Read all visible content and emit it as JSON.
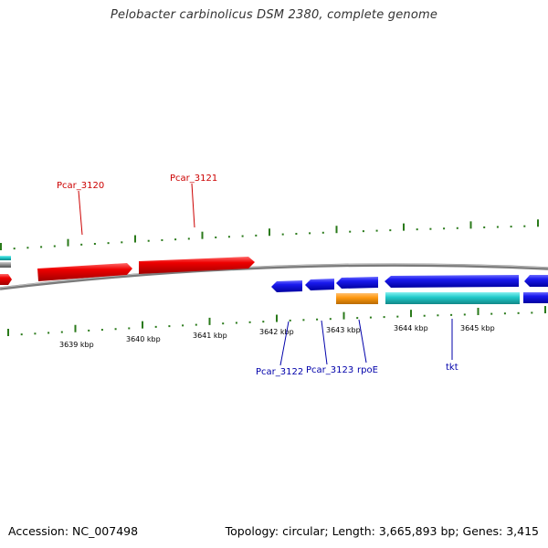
{
  "title": "Pelobacter carbinolicus DSM 2380, complete genome",
  "footer": {
    "accession": "Accession: NC_007498",
    "summary": "Topology: circular; Length: 3,665,893 bp; Genes: 3,415"
  },
  "colors": {
    "plus_strand": "#ee0000",
    "minus_strand": "#1a1aee",
    "orange_feature": "#ff9911",
    "cyan_feature": "#22cccc",
    "tick": "#2a7a1a",
    "backbone": "#808080",
    "plus_label": "#cc0000",
    "minus_label": "#0000aa"
  },
  "scale": {
    "labels": [
      "3639 kbp",
      "3640 kbp",
      "3641 kbp",
      "3642 kbp",
      "3643 kbp",
      "3644 kbp",
      "3645 kbp"
    ]
  },
  "genes": {
    "plus": [
      {
        "label": "Pcar_3120"
      },
      {
        "label": "Pcar_3121"
      }
    ],
    "minus": [
      {
        "label": "Pcar_3122"
      },
      {
        "label": "Pcar_3123"
      },
      {
        "label": "rpoE"
      },
      {
        "label": "tkt"
      }
    ]
  }
}
